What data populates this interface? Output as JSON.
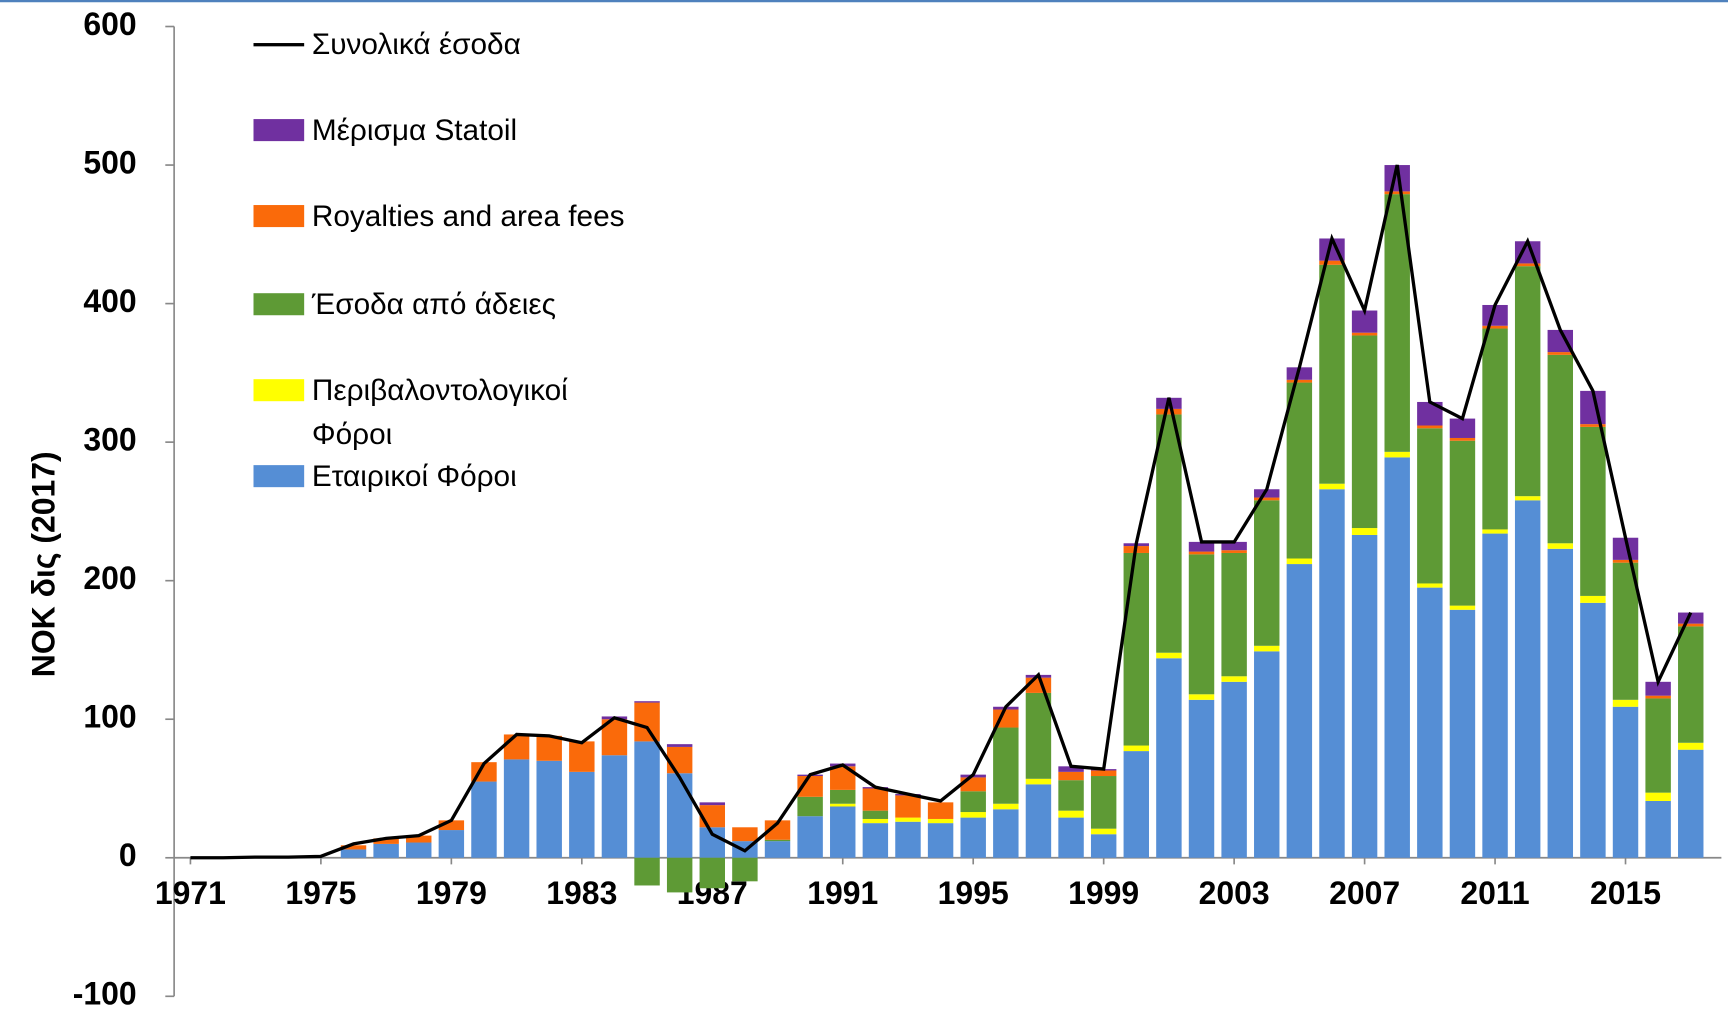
{
  "chart_data": {
    "type": "stacked-bar-line",
    "y_label": "NOK δις (2017)",
    "x": [
      1971,
      1972,
      1973,
      1974,
      1975,
      1976,
      1977,
      1978,
      1979,
      1980,
      1981,
      1982,
      1983,
      1984,
      1985,
      1986,
      1987,
      1988,
      1989,
      1990,
      1991,
      1992,
      1993,
      1994,
      1995,
      1996,
      1997,
      1998,
      1999,
      2000,
      2001,
      2002,
      2003,
      2004,
      2005,
      2006,
      2007,
      2008,
      2009,
      2010,
      2011,
      2012,
      2013,
      2014,
      2015,
      2016,
      2017
    ],
    "xlim": [
      1970.5,
      2017.5
    ],
    "xticks": [
      1971,
      1975,
      1979,
      1983,
      1987,
      1991,
      1995,
      1999,
      2003,
      2007,
      2011,
      2015
    ],
    "ylim": [
      -100,
      600
    ],
    "yticks": [
      -100,
      0,
      100,
      200,
      300,
      400,
      500,
      600
    ],
    "legend": "upper left",
    "series": [
      {
        "name": "Εταιρικοί Φόροι",
        "color": "#558ed5",
        "values": [
          0,
          0,
          0,
          0,
          0,
          6,
          10,
          11,
          20,
          55,
          71,
          70,
          62,
          74,
          84,
          61,
          22,
          12,
          12,
          30,
          37,
          25,
          26,
          25,
          29,
          35,
          53,
          29,
          17,
          77,
          144,
          114,
          127,
          149,
          212,
          266,
          233,
          289,
          195,
          179,
          234,
          258,
          223,
          184,
          109,
          41,
          78
        ]
      },
      {
        "name": "Περιβαλοντολογικοί Φόροι",
        "color": "#ffff00",
        "values": [
          0,
          0,
          0,
          0,
          0,
          0,
          0,
          0,
          0,
          0,
          0,
          0,
          0,
          0,
          0,
          0,
          0,
          0,
          0,
          0,
          2,
          3,
          3,
          3,
          4,
          4,
          4,
          5,
          4,
          4,
          4,
          4,
          4,
          4,
          4,
          4,
          5,
          4,
          3,
          3,
          3,
          3,
          4,
          5,
          5,
          6,
          5
        ]
      },
      {
        "name": "Έσοδα από άδειες",
        "color": "#5e9a35",
        "values": [
          0,
          0,
          0,
          0,
          0,
          0,
          0,
          0,
          0,
          0,
          0,
          0,
          0,
          0,
          -20,
          -25,
          -22,
          -17,
          1,
          14,
          10,
          6,
          0,
          0,
          15,
          55,
          62,
          22,
          38,
          139,
          172,
          101,
          89,
          105,
          127,
          158,
          139,
          186,
          112,
          119,
          145,
          166,
          136,
          122,
          99,
          68,
          84
        ]
      },
      {
        "name": "Royalties and area fees",
        "color": "#fa6a0a",
        "values": [
          0,
          0,
          0,
          0,
          0,
          3,
          4,
          5,
          7,
          14,
          18,
          18,
          22,
          26,
          28,
          19,
          16,
          10,
          14,
          15,
          17,
          16,
          16,
          12,
          10,
          13,
          11,
          6,
          4,
          5,
          4,
          2,
          2,
          2,
          2,
          3,
          2,
          2,
          2,
          2,
          2,
          2,
          2,
          2,
          2,
          2,
          2
        ]
      },
      {
        "name": "Μέρισμα Statoil",
        "color": "#7030a0",
        "values": [
          0,
          0,
          0,
          0,
          0,
          0,
          0,
          0,
          0,
          0,
          0,
          0,
          0,
          2,
          1,
          2,
          2,
          0,
          0,
          1,
          2,
          1,
          1,
          0,
          2,
          2,
          2,
          4,
          1,
          2,
          8,
          7,
          6,
          6,
          9,
          16,
          16,
          19,
          17,
          14,
          15,
          16,
          16,
          24,
          16,
          10,
          8
        ]
      },
      {
        "name": "Συνολικά έσοδα",
        "color": "#000000",
        "kind": "line",
        "values": [
          0,
          0,
          0.5,
          0.5,
          1,
          10,
          14,
          16,
          27,
          68,
          89,
          88,
          83,
          101,
          94,
          58,
          17,
          5,
          25,
          60,
          67,
          51,
          46,
          41,
          60,
          109,
          132,
          66,
          64,
          227,
          332,
          228,
          228,
          266,
          354,
          447,
          395,
          500,
          329,
          317,
          399,
          445,
          381,
          337,
          231,
          127,
          177
        ]
      }
    ]
  }
}
